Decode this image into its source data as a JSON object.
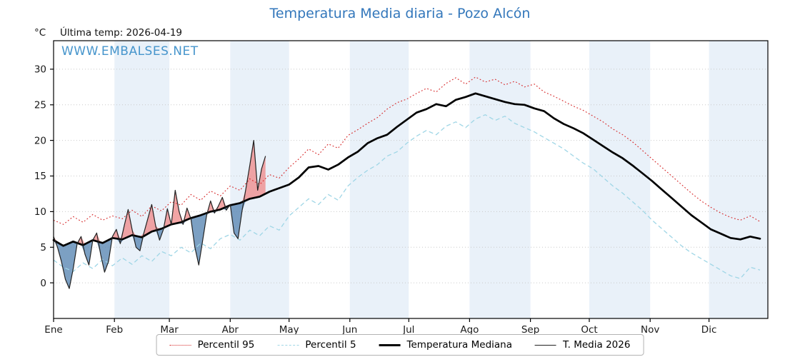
{
  "title": "Temperatura Media diaria - Pozo Alcón",
  "subtitle": "Última temp: 2026-04-19",
  "y_unit_label": "°C",
  "watermark": "WWW.EMBALSES.NET",
  "colors": {
    "title": "#3377bb",
    "watermark": "#4695cc",
    "p95": "#d62728",
    "p5": "#9fd6e6",
    "median": "#000000",
    "t2026": "#222222",
    "fill_above": "#ef8f8f",
    "fill_below": "#5b88b4",
    "band": "#e9f1f9",
    "grid": "#c9c9c9",
    "axis": "#000000"
  },
  "legend": {
    "items": [
      {
        "label": "Percentil 95",
        "color_key": "p95",
        "style": "dotted"
      },
      {
        "label": "Percentil 5",
        "color_key": "p5",
        "style": "dashed"
      },
      {
        "label": "Temperatura Mediana",
        "color_key": "median",
        "style": "solid-thick"
      },
      {
        "label": "T. Media 2026",
        "color_key": "t2026",
        "style": "solid-thin"
      }
    ]
  },
  "chart_data": {
    "type": "line",
    "title": "Temperatura Media diaria - Pozo Alcón",
    "xlabel": "",
    "ylabel": "°C",
    "x_unit": "day_of_year",
    "ylim": [
      -5,
      34
    ],
    "y_ticks": [
      0,
      5,
      10,
      15,
      20,
      25,
      30
    ],
    "x_tick_labels": [
      "Ene",
      "Feb",
      "Mar",
      "Abr",
      "May",
      "Jun",
      "Jul",
      "Ago",
      "Sep",
      "Oct",
      "Nov",
      "Dic"
    ],
    "month_start_days": [
      1,
      32,
      60,
      91,
      121,
      152,
      182,
      213,
      244,
      274,
      305,
      335
    ],
    "grid": true,
    "legend_position": "bottom",
    "sample_days": [
      1,
      6,
      11,
      16,
      21,
      26,
      31,
      36,
      41,
      46,
      51,
      56,
      61,
      66,
      71,
      76,
      81,
      86,
      91,
      96,
      101,
      106,
      111,
      116,
      121,
      126,
      131,
      136,
      141,
      146,
      151,
      156,
      161,
      166,
      171,
      176,
      181,
      186,
      191,
      196,
      201,
      206,
      211,
      216,
      221,
      226,
      231,
      236,
      241,
      246,
      251,
      256,
      261,
      266,
      271,
      276,
      281,
      286,
      291,
      296,
      301,
      306,
      311,
      316,
      321,
      326,
      331,
      336,
      341,
      346,
      351,
      356,
      361
    ],
    "series": [
      {
        "name": "Percentil 95",
        "style": "dotted",
        "color": "#d62728",
        "values": [
          8.8,
          8.2,
          9.3,
          8.5,
          9.6,
          8.8,
          9.4,
          9.0,
          10.2,
          9.3,
          10.8,
          10.1,
          11.4,
          10.9,
          12.4,
          11.6,
          12.9,
          12.2,
          13.6,
          13.0,
          14.6,
          13.8,
          15.2,
          14.7,
          16.2,
          17.4,
          18.8,
          18.0,
          19.5,
          18.9,
          20.7,
          21.5,
          22.4,
          23.2,
          24.4,
          25.3,
          25.8,
          26.6,
          27.3,
          26.8,
          28.0,
          28.8,
          27.9,
          28.9,
          28.2,
          28.6,
          27.8,
          28.3,
          27.5,
          27.9,
          26.8,
          26.2,
          25.5,
          24.8,
          24.2,
          23.4,
          22.6,
          21.6,
          20.8,
          19.8,
          18.6,
          17.4,
          16.2,
          15.0,
          13.8,
          12.6,
          11.5,
          10.6,
          9.8,
          9.2,
          8.8,
          9.4,
          8.6
        ]
      },
      {
        "name": "Percentil 5",
        "style": "dashed",
        "color": "#9fd6e6",
        "values": [
          3.2,
          2.2,
          1.6,
          2.8,
          2.0,
          3.3,
          2.4,
          3.5,
          2.6,
          3.8,
          3.0,
          4.4,
          3.8,
          5.0,
          4.2,
          5.6,
          4.8,
          6.2,
          6.8,
          6.0,
          7.4,
          6.6,
          8.0,
          7.4,
          9.4,
          10.6,
          11.8,
          11.0,
          12.4,
          11.6,
          13.6,
          14.8,
          15.8,
          16.6,
          17.8,
          18.4,
          19.6,
          20.6,
          21.4,
          20.8,
          22.0,
          22.6,
          21.8,
          23.0,
          23.6,
          22.8,
          23.4,
          22.4,
          21.8,
          21.2,
          20.4,
          19.6,
          18.8,
          17.8,
          16.8,
          16.0,
          14.8,
          13.6,
          12.6,
          11.4,
          10.2,
          8.8,
          7.6,
          6.4,
          5.2,
          4.2,
          3.4,
          2.6,
          1.8,
          1.0,
          0.6,
          2.2,
          1.8
        ]
      },
      {
        "name": "Temperatura Mediana",
        "style": "solid",
        "width": 2.7,
        "color": "#000000",
        "values": [
          6.0,
          5.2,
          5.8,
          5.3,
          6.0,
          5.6,
          6.3,
          6.1,
          6.7,
          6.4,
          7.2,
          7.6,
          8.2,
          8.5,
          9.1,
          9.5,
          10.0,
          10.3,
          10.9,
          11.2,
          11.8,
          12.1,
          12.8,
          13.3,
          13.8,
          14.8,
          16.2,
          16.4,
          15.9,
          16.6,
          17.6,
          18.4,
          19.6,
          20.3,
          20.8,
          21.9,
          22.9,
          23.9,
          24.4,
          25.1,
          24.8,
          25.7,
          26.1,
          26.6,
          26.2,
          25.8,
          25.4,
          25.1,
          25.0,
          24.5,
          24.1,
          23.1,
          22.3,
          21.7,
          21.0,
          20.1,
          19.2,
          18.3,
          17.5,
          16.5,
          15.4,
          14.3,
          13.1,
          11.9,
          10.7,
          9.5,
          8.5,
          7.5,
          6.9,
          6.3,
          6.1,
          6.5,
          6.2
        ]
      },
      {
        "name": "T. Media 2026",
        "style": "solid",
        "width": 1.2,
        "color": "#222222",
        "x": [
          1,
          3,
          5,
          7,
          9,
          11,
          13,
          15,
          17,
          19,
          21,
          23,
          25,
          27,
          29,
          31,
          33,
          35,
          37,
          39,
          41,
          43,
          45,
          47,
          49,
          51,
          53,
          55,
          57,
          59,
          61,
          63,
          65,
          67,
          69,
          71,
          73,
          75,
          77,
          79,
          81,
          83,
          85,
          87,
          89,
          91,
          93,
          95,
          97,
          99,
          101,
          103,
          105,
          107,
          109
        ],
        "values": [
          6.5,
          5.0,
          3.0,
          0.5,
          -0.8,
          2.0,
          5.5,
          6.5,
          4.0,
          2.5,
          6.0,
          7.0,
          4.0,
          1.5,
          3.0,
          6.5,
          7.5,
          5.5,
          8.0,
          10.3,
          7.5,
          5.0,
          4.5,
          7.0,
          9.0,
          11.0,
          8.0,
          6.0,
          7.5,
          10.4,
          8.2,
          13.0,
          10.0,
          8.2,
          10.5,
          9.0,
          5.0,
          2.5,
          6.0,
          9.5,
          11.5,
          9.8,
          10.8,
          12.0,
          10.2,
          11.0,
          7.0,
          6.2,
          10.0,
          13.2,
          16.5,
          20.0,
          13.0,
          16.0,
          17.8
        ],
        "fill_vs_median": {
          "above": "#ef8f8f",
          "below": "#5b88b4"
        }
      }
    ]
  }
}
